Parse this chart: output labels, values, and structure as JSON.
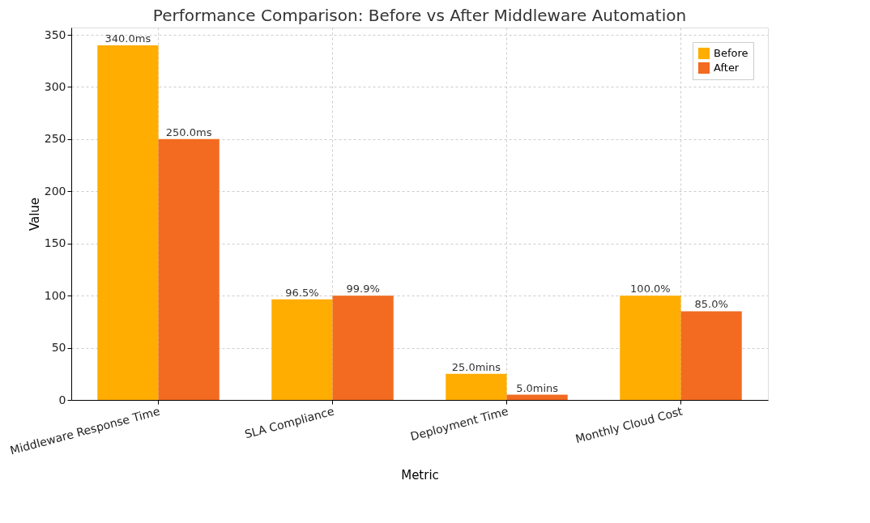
{
  "chart_data": {
    "type": "bar",
    "title": "Performance Comparison: Before vs After Middleware Automation",
    "xlabel": "Metric",
    "ylabel": "Value",
    "categories": [
      "Middleware Response Time",
      "SLA Compliance",
      "Deployment Time",
      "Monthly Cloud Cost"
    ],
    "series": [
      {
        "name": "Before",
        "color": "#ffad00",
        "values": [
          340,
          96.5,
          25,
          100
        ],
        "value_labels": [
          "340.0ms",
          "96.5%",
          "25.0mins",
          "100.0%"
        ]
      },
      {
        "name": "After",
        "color": "#f26b21",
        "values": [
          250,
          99.9,
          5,
          85
        ],
        "value_labels": [
          "250.0ms",
          "99.9%",
          "5.0mins",
          "85.0%"
        ]
      }
    ],
    "ylim": [
      0,
      357
    ],
    "yticks": [
      0,
      50,
      100,
      150,
      200,
      250,
      300,
      350
    ],
    "grid": true,
    "legend": "top right"
  }
}
